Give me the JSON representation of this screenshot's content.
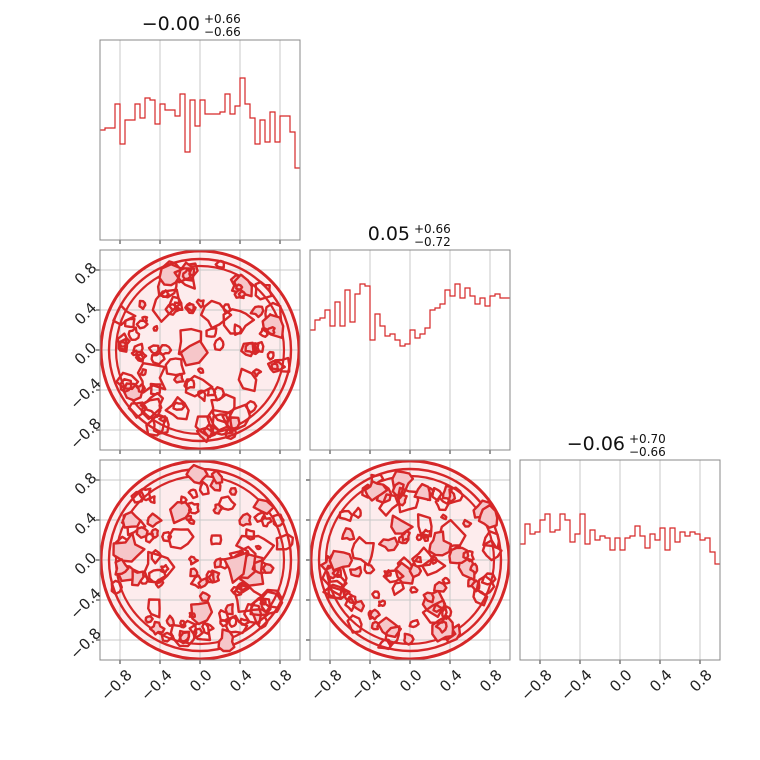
{
  "chart_data": {
    "type": "corner",
    "parameters": [
      {
        "title_value": "−0.00",
        "title_plus": "+0.66",
        "title_minus": "−0.66",
        "range": [
          -1,
          1
        ],
        "hist": [
          0.55,
          0.56,
          0.56,
          0.68,
          0.48,
          0.6,
          0.6,
          0.68,
          0.61,
          0.71,
          0.7,
          0.58,
          0.68,
          0.65,
          0.65,
          0.62,
          0.73,
          0.44,
          0.7,
          0.57,
          0.7,
          0.63,
          0.63,
          0.63,
          0.64,
          0.73,
          0.63,
          0.67,
          0.81,
          0.68,
          0.61,
          0.48,
          0.6,
          0.49,
          0.64,
          0.49,
          0.62,
          0.62,
          0.54,
          0.36
        ]
      },
      {
        "title_value": "0.05",
        "title_plus": "+0.66",
        "title_minus": "−0.72",
        "range": [
          -1,
          1
        ],
        "hist": [
          0.6,
          0.65,
          0.66,
          0.7,
          0.62,
          0.74,
          0.62,
          0.8,
          0.64,
          0.78,
          0.83,
          0.82,
          0.55,
          0.68,
          0.62,
          0.57,
          0.58,
          0.55,
          0.52,
          0.53,
          0.6,
          0.56,
          0.58,
          0.61,
          0.7,
          0.71,
          0.73,
          0.8,
          0.77,
          0.83,
          0.76,
          0.81,
          0.77,
          0.73,
          0.76,
          0.72,
          0.77,
          0.78,
          0.76,
          0.76
        ]
      },
      {
        "title_value": "−0.06",
        "title_plus": "+0.70",
        "title_minus": "−0.66",
        "range": [
          -1,
          1
        ],
        "hist": [
          0.58,
          0.68,
          0.63,
          0.64,
          0.7,
          0.73,
          0.64,
          0.65,
          0.73,
          0.7,
          0.59,
          0.63,
          0.73,
          0.58,
          0.65,
          0.6,
          0.62,
          0.61,
          0.55,
          0.61,
          0.55,
          0.61,
          0.62,
          0.67,
          0.62,
          0.56,
          0.63,
          0.6,
          0.66,
          0.55,
          0.66,
          0.59,
          0.64,
          0.62,
          0.64,
          0.63,
          0.6,
          0.61,
          0.54,
          0.48
        ]
      }
    ],
    "ticks": [
      -0.8,
      -0.4,
      0.0,
      0.4,
      0.8
    ],
    "tick_labels": [
      "−0.8",
      "−0.4",
      "0.0",
      "0.4",
      "0.8"
    ],
    "grid": true,
    "color": "#d62728",
    "fill_color": "#f6c6c9"
  }
}
